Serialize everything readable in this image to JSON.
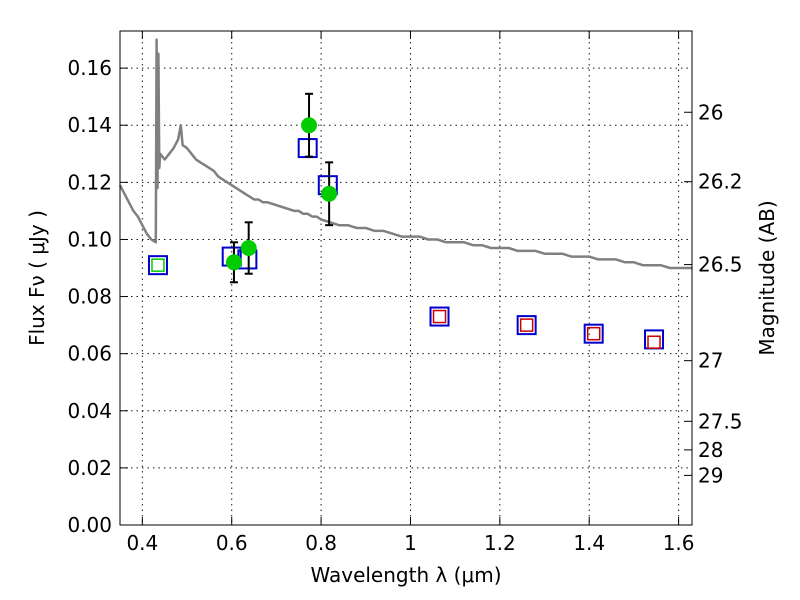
{
  "chart_data": {
    "type": "scatter",
    "title": "",
    "xlabel": "Wavelength  λ (μm)",
    "ylabel": "Flux  Fν  ( μJy )",
    "ylabel_right": "Magnitude (AB)",
    "xlim": [
      0.35,
      1.63
    ],
    "ylim": [
      0.0,
      0.173
    ],
    "grid": true,
    "xticks": [
      0.4,
      0.6,
      0.8,
      1.0,
      1.2,
      1.4,
      1.6
    ],
    "xtick_labels": [
      "0.4",
      "0.6",
      "0.8",
      "1",
      "1.2",
      "1.4",
      "1.6"
    ],
    "yticks": [
      0.0,
      0.02,
      0.04,
      0.06,
      0.08,
      0.1,
      0.12,
      0.14,
      0.16
    ],
    "ytick_labels": [
      "0.00",
      "0.02",
      "0.04",
      "0.06",
      "0.08",
      "0.10",
      "0.12",
      "0.14",
      "0.16"
    ],
    "right_ticks": [
      {
        "label": "26",
        "mag": 26.0
      },
      {
        "label": "26.2",
        "mag": 26.2
      },
      {
        "label": "26.5",
        "mag": 26.5
      },
      {
        "label": "27",
        "mag": 27.0
      },
      {
        "label": "27.5",
        "mag": 27.5
      },
      {
        "label": "28",
        "mag": 27.85
      },
      {
        "label": "29",
        "mag": 28.3
      }
    ],
    "series": [
      {
        "kind": "model_spectrum",
        "color": "#808080",
        "x": [
          0.35,
          0.36,
          0.37,
          0.38,
          0.39,
          0.4,
          0.41,
          0.42,
          0.43,
          0.432,
          0.434,
          0.436,
          0.438,
          0.44,
          0.45,
          0.46,
          0.47,
          0.48,
          0.486,
          0.49,
          0.5,
          0.51,
          0.52,
          0.53,
          0.54,
          0.55,
          0.56,
          0.57,
          0.58,
          0.59,
          0.6,
          0.61,
          0.62,
          0.63,
          0.64,
          0.65,
          0.66,
          0.67,
          0.68,
          0.7,
          0.72,
          0.74,
          0.75,
          0.76,
          0.77,
          0.78,
          0.79,
          0.8,
          0.82,
          0.84,
          0.86,
          0.88,
          0.9,
          0.92,
          0.94,
          0.96,
          0.98,
          1.0,
          1.02,
          1.04,
          1.06,
          1.08,
          1.1,
          1.12,
          1.14,
          1.16,
          1.18,
          1.2,
          1.22,
          1.24,
          1.26,
          1.28,
          1.3,
          1.32,
          1.34,
          1.36,
          1.38,
          1.4,
          1.42,
          1.44,
          1.46,
          1.48,
          1.5,
          1.52,
          1.54,
          1.56,
          1.58,
          1.6,
          1.63
        ],
        "y": [
          0.119,
          0.116,
          0.113,
          0.11,
          0.108,
          0.105,
          0.102,
          0.1,
          0.099,
          0.17,
          0.118,
          0.165,
          0.125,
          0.13,
          0.128,
          0.13,
          0.132,
          0.135,
          0.14,
          0.133,
          0.132,
          0.13,
          0.128,
          0.127,
          0.126,
          0.125,
          0.124,
          0.122,
          0.121,
          0.12,
          0.119,
          0.118,
          0.117,
          0.116,
          0.115,
          0.114,
          0.114,
          0.113,
          0.113,
          0.112,
          0.111,
          0.11,
          0.11,
          0.109,
          0.109,
          0.108,
          0.108,
          0.107,
          0.106,
          0.105,
          0.105,
          0.104,
          0.104,
          0.103,
          0.103,
          0.102,
          0.101,
          0.101,
          0.101,
          0.1,
          0.1,
          0.099,
          0.099,
          0.099,
          0.098,
          0.098,
          0.097,
          0.097,
          0.097,
          0.096,
          0.096,
          0.096,
          0.095,
          0.095,
          0.095,
          0.094,
          0.094,
          0.094,
          0.093,
          0.093,
          0.093,
          0.092,
          0.092,
          0.091,
          0.091,
          0.091,
          0.09,
          0.09,
          0.09
        ]
      },
      {
        "kind": "model_photometry",
        "color": "#0000cc",
        "x": [
          0.435,
          0.6,
          0.635,
          0.77,
          0.815,
          1.065,
          1.26,
          1.41,
          1.545
        ],
        "y": [
          0.091,
          0.094,
          0.093,
          0.132,
          0.119,
          0.073,
          0.07,
          0.067,
          0.065
        ]
      },
      {
        "kind": "detections",
        "color": "#00cc00",
        "x": [
          0.605,
          0.638,
          0.773,
          0.818
        ],
        "y": [
          0.092,
          0.097,
          0.14,
          0.116
        ],
        "yerr": [
          0.007,
          0.009,
          0.011,
          0.011
        ]
      },
      {
        "kind": "upper_limits",
        "color": "#cc0000",
        "x": [
          1.065,
          1.26,
          1.41,
          1.545
        ],
        "y": [
          0.073,
          0.07,
          0.067,
          0.064
        ]
      },
      {
        "kind": "detection_box",
        "color": "#00cc00",
        "x": [
          0.435
        ],
        "y": [
          0.091
        ]
      }
    ]
  }
}
